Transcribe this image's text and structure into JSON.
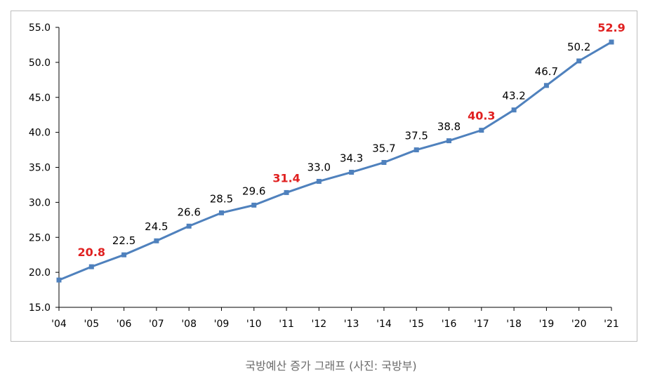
{
  "chart_data": {
    "type": "line",
    "title": "",
    "xlabel": "",
    "ylabel": "",
    "categories": [
      "'04",
      "'05",
      "'06",
      "'07",
      "'08",
      "'09",
      "'10",
      "'11",
      "'12",
      "'13",
      "'14",
      "'15",
      "'16",
      "'17",
      "'18",
      "'19",
      "'20",
      "'21"
    ],
    "series": [
      {
        "values": [
          18.9,
          20.8,
          22.5,
          24.5,
          26.6,
          28.5,
          29.6,
          31.4,
          33.0,
          34.3,
          35.7,
          37.5,
          38.8,
          40.3,
          43.2,
          46.7,
          50.2,
          52.9
        ],
        "data_labels": [
          "",
          "20.8",
          "22.5",
          "24.5",
          "26.6",
          "28.5",
          "29.6",
          "31.4",
          "33.0",
          "34.3",
          "35.7",
          "37.5",
          "38.8",
          "40.3",
          "43.2",
          "46.7",
          "50.2",
          "52.9"
        ],
        "highlighted_labels": [
          "20.8",
          "31.4",
          "40.3",
          "52.9"
        ],
        "color": "#4f81bd"
      }
    ],
    "yticks": [
      "15.0",
      "20.0",
      "25.0",
      "30.0",
      "35.0",
      "40.0",
      "45.0",
      "50.0",
      "55.0"
    ],
    "ylim": [
      15,
      55
    ],
    "grid": false,
    "legend": "none",
    "highlight_color": "#e02020"
  },
  "caption": "국방예산 증가 그래프 (사진: 국방부)"
}
